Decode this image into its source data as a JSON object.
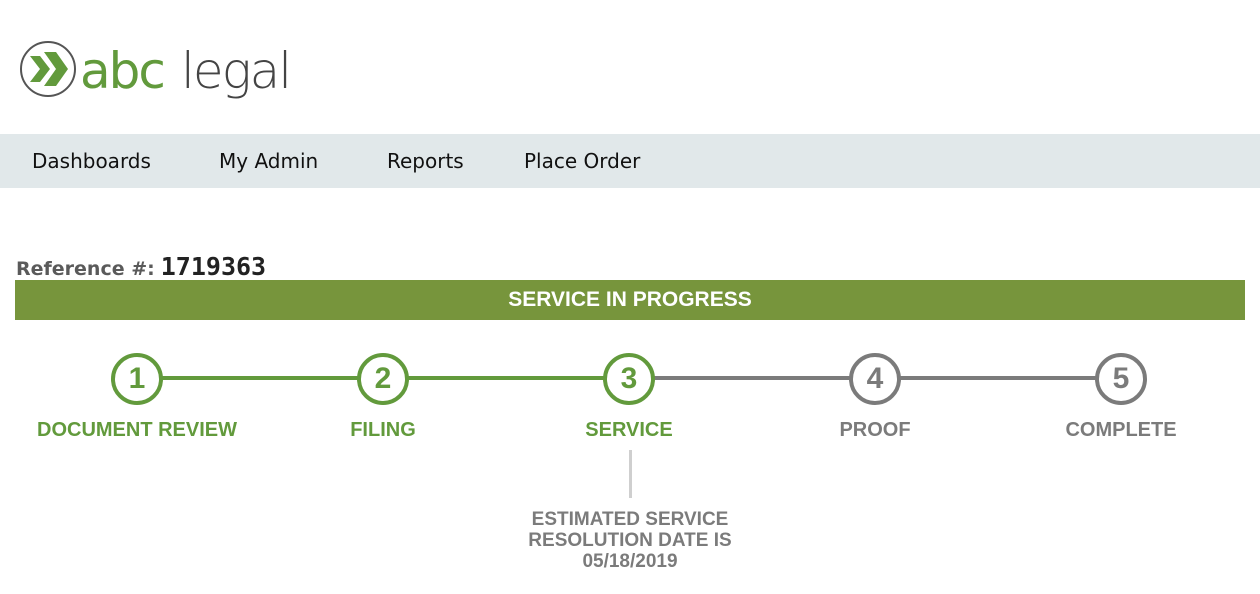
{
  "brand": {
    "logo_text": "abclegal",
    "green": "#629a3c",
    "gray": "#7b7b7b"
  },
  "nav": {
    "items": [
      {
        "label": "Dashboards"
      },
      {
        "label": "My Admin"
      },
      {
        "label": "Reports"
      },
      {
        "label": "Place Order"
      }
    ]
  },
  "reference": {
    "label": "Reference #:",
    "value": "1719363"
  },
  "status_banner": {
    "text": "SERVICE IN PROGRESS",
    "color": "#77953c"
  },
  "steps": [
    {
      "number": "1",
      "label": "DOCUMENT REVIEW",
      "state": "complete"
    },
    {
      "number": "2",
      "label": "FILING",
      "state": "complete"
    },
    {
      "number": "3",
      "label": "SERVICE",
      "state": "current"
    },
    {
      "number": "4",
      "label": "PROOF",
      "state": "pending"
    },
    {
      "number": "5",
      "label": "COMPLETE",
      "state": "pending"
    }
  ],
  "estimate": {
    "line1": "ESTIMATED SERVICE",
    "line2": "RESOLUTION DATE IS",
    "date": "05/18/2019"
  }
}
